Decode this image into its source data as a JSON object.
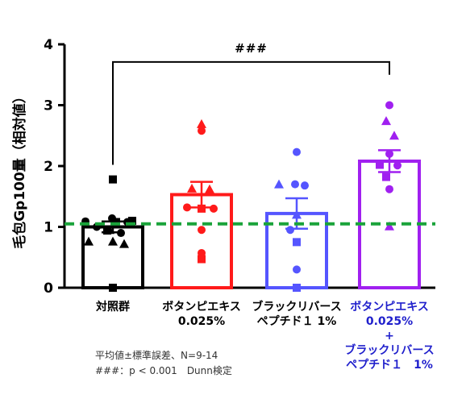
{
  "chart_data": {
    "type": "bar",
    "ylabel": "毛包Gp100量（相対値）",
    "ylim": [
      0,
      4
    ],
    "yticks": [
      "0",
      "1",
      "2",
      "3",
      "4"
    ],
    "categories": [
      {
        "lines": [
          "対照群"
        ],
        "color": "#000000"
      },
      {
        "lines": [
          "ボタンピエキス",
          "0.025%"
        ],
        "color": "#000000"
      },
      {
        "lines": [
          "ブラックリバース",
          "ペプチド１ 1%"
        ],
        "color": "#000000"
      },
      {
        "lines": [
          "ボタンピエキス",
          "0.025%",
          "+",
          "ブラックリバース",
          "ペプチド１　1%"
        ],
        "color": "#1f1fcc"
      }
    ],
    "series": [
      {
        "value": 1.0,
        "error": 0.09,
        "color": "#000000",
        "points": [
          {
            "y": 1.78,
            "s": "square"
          },
          {
            "y": 1.14,
            "s": "circle"
          },
          {
            "y": 1.09,
            "s": "circle"
          },
          {
            "y": 1.08,
            "s": "circle"
          },
          {
            "y": 1.08,
            "s": "square"
          },
          {
            "y": 1.1,
            "s": "square"
          },
          {
            "y": 1.0,
            "s": "circle"
          },
          {
            "y": 0.94,
            "s": "square"
          },
          {
            "y": 0.9,
            "s": "circle"
          },
          {
            "y": 0.76,
            "s": "triangle"
          },
          {
            "y": 0.76,
            "s": "triangle"
          },
          {
            "y": 0.72,
            "s": "triangle"
          },
          {
            "y": 0.95,
            "s": "triangle"
          },
          {
            "y": 0.0,
            "s": "square"
          }
        ]
      },
      {
        "value": 1.53,
        "error": 0.21,
        "color": "#ff1a1a",
        "points": [
          {
            "y": 2.69,
            "s": "triangle"
          },
          {
            "y": 2.58,
            "s": "circle"
          },
          {
            "y": 1.63,
            "s": "triangle"
          },
          {
            "y": 1.62,
            "s": "triangle"
          },
          {
            "y": 1.3,
            "s": "square"
          },
          {
            "y": 1.32,
            "s": "circle"
          },
          {
            "y": 1.3,
            "s": "circle"
          },
          {
            "y": 0.95,
            "s": "circle"
          },
          {
            "y": 0.57,
            "s": "circle"
          },
          {
            "y": 0.47,
            "s": "square"
          }
        ]
      },
      {
        "value": 1.22,
        "error": 0.25,
        "color": "#5555ff",
        "points": [
          {
            "y": 2.23,
            "s": "circle"
          },
          {
            "y": 1.7,
            "s": "triangle"
          },
          {
            "y": 1.7,
            "s": "circle"
          },
          {
            "y": 1.68,
            "s": "circle"
          },
          {
            "y": 1.2,
            "s": "triangle"
          },
          {
            "y": 0.95,
            "s": "circle"
          },
          {
            "y": 0.75,
            "s": "square"
          },
          {
            "y": 0.3,
            "s": "circle"
          },
          {
            "y": 0.0,
            "s": "square"
          }
        ]
      },
      {
        "value": 2.08,
        "error": 0.18,
        "color": "#a020f0",
        "points": [
          {
            "y": 3.0,
            "s": "circle"
          },
          {
            "y": 2.74,
            "s": "triangle"
          },
          {
            "y": 2.5,
            "s": "triangle"
          },
          {
            "y": 2.2,
            "s": "circle"
          },
          {
            "y": 2.02,
            "s": "square"
          },
          {
            "y": 2.01,
            "s": "circle"
          },
          {
            "y": 1.82,
            "s": "square"
          },
          {
            "y": 1.62,
            "s": "circle"
          },
          {
            "y": 1.01,
            "s": "triangle"
          }
        ]
      }
    ],
    "reference_line": {
      "y": 1.05,
      "color": "#1aa33a"
    },
    "significance": {
      "label": "###",
      "from": 0,
      "to": 3,
      "y": 3.87
    }
  },
  "footnotes": [
    "平均値±標準誤差、N=9-14",
    "###：p < 0.001　Dunn検定"
  ]
}
